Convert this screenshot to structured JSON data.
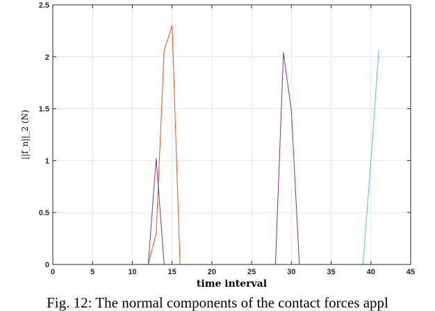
{
  "chart_data": {
    "type": "line",
    "title": "",
    "xlabel": "time interval",
    "ylabel": "||f_n||_2 (N)",
    "xlim": [
      0,
      45
    ],
    "ylim": [
      0,
      2.5
    ],
    "xticks": [
      0,
      5,
      10,
      15,
      20,
      25,
      30,
      35,
      40,
      45
    ],
    "yticks": [
      0,
      0.5,
      1,
      1.5,
      2,
      2.5
    ],
    "ytick_labels": [
      "0",
      "0.5",
      "1",
      "1.5",
      "2",
      "2.5"
    ],
    "grid": true,
    "series": [
      {
        "color": "#0072BD",
        "x": [
          0,
          12,
          13,
          14,
          15,
          16,
          17
        ],
        "y": [
          0,
          0,
          0,
          0,
          0,
          0,
          0
        ]
      },
      {
        "color": "#D95319",
        "x": [
          12,
          13,
          14,
          15,
          16
        ],
        "y": [
          0,
          0.3,
          2.06,
          2.3,
          0
        ]
      },
      {
        "color": "#7E2F8E",
        "x": [
          12,
          13,
          14
        ],
        "y": [
          0,
          1.02,
          0
        ]
      },
      {
        "color": "#7E2F8E",
        "x": [
          28,
          29,
          30,
          31
        ],
        "y": [
          0,
          2.04,
          1.48,
          0
        ]
      },
      {
        "color": "#4DBEEE",
        "x": [
          0,
          39,
          40,
          41
        ],
        "y": [
          0,
          0,
          1.0,
          2.07
        ]
      }
    ]
  },
  "caption": "Fig. 12: The normal components of the contact forces appl"
}
